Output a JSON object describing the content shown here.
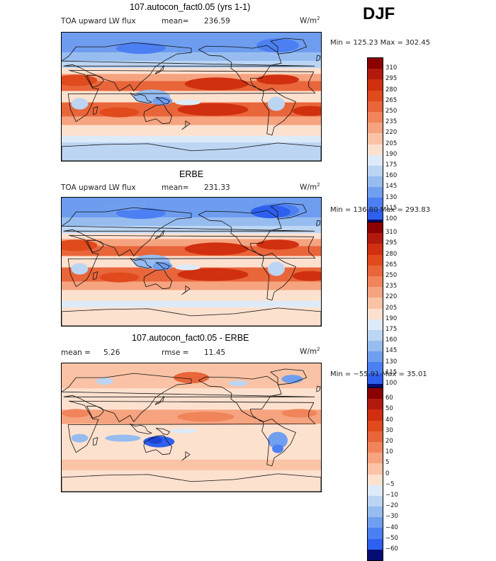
{
  "season": "DJF",
  "units": "W/m",
  "units_sup": "2",
  "panels": [
    {
      "title": "107.autocon_fact0.05 (yrs 1-1)",
      "left_label": "TOA upward LW flux",
      "stat_label": "mean=",
      "stat_value": "236.59",
      "minmax": "Min = 125.23 Max = 302.45",
      "colorbar_labels": [
        "310",
        "295",
        "280",
        "265",
        "250",
        "235",
        "220",
        "205",
        "190",
        "175",
        "160",
        "145",
        "130",
        "115",
        "100"
      ]
    },
    {
      "title": "ERBE",
      "left_label": "TOA upward LW flux",
      "stat_label": "mean=",
      "stat_value": "231.33",
      "minmax": "Min = 136.80 Max = 293.83",
      "colorbar_labels": [
        "310",
        "295",
        "280",
        "265",
        "250",
        "235",
        "220",
        "205",
        "190",
        "175",
        "160",
        "145",
        "130",
        "115",
        "100"
      ]
    },
    {
      "title": "107.autocon_fact0.05 - ERBE",
      "mean_label": "mean =",
      "mean_value": "5.26",
      "rmse_label": "rmse =",
      "rmse_value": "11.45",
      "minmax": "Min = −55.91 Max =  35.01",
      "colorbar_labels": [
        "60",
        "50",
        "40",
        "30",
        "20",
        "10",
        "5",
        "0",
        "−5",
        "−10",
        "−20",
        "−30",
        "−40",
        "−50",
        "−60"
      ]
    }
  ],
  "colors": {
    "seq": [
      "#8b0000",
      "#b81c0c",
      "#d2360e",
      "#e24d1c",
      "#ea6a3b",
      "#f38a5e",
      "#f9ab86",
      "#fccdb0",
      "#fbeadb",
      "#dbe9f7",
      "#b9d3f2",
      "#93b9ee",
      "#6e9df0",
      "#4a7ef2",
      "#2a5ff0",
      "#163fd8",
      "#0a20ac",
      "#040a6e"
    ]
  },
  "chart_data": [
    {
      "type": "heatmap",
      "title": "107.autocon_fact0.05 (yrs 1-1)",
      "variable": "TOA upward LW flux",
      "units": "W/m2",
      "mean": 236.59,
      "min": 125.23,
      "max": 302.45,
      "levels": [
        100,
        115,
        130,
        145,
        160,
        175,
        190,
        205,
        220,
        235,
        250,
        265,
        280,
        295,
        310
      ]
    },
    {
      "type": "heatmap",
      "title": "ERBE",
      "variable": "TOA upward LW flux",
      "units": "W/m2",
      "mean": 231.33,
      "min": 136.8,
      "max": 293.83,
      "levels": [
        100,
        115,
        130,
        145,
        160,
        175,
        190,
        205,
        220,
        235,
        250,
        265,
        280,
        295,
        310
      ]
    },
    {
      "type": "heatmap",
      "title": "107.autocon_fact0.05 - ERBE",
      "units": "W/m2",
      "mean": 5.26,
      "rmse": 11.45,
      "min": -55.91,
      "max": 35.01,
      "levels": [
        -60,
        -50,
        -40,
        -30,
        -20,
        -10,
        -5,
        0,
        5,
        10,
        20,
        30,
        40,
        50,
        60
      ]
    }
  ]
}
